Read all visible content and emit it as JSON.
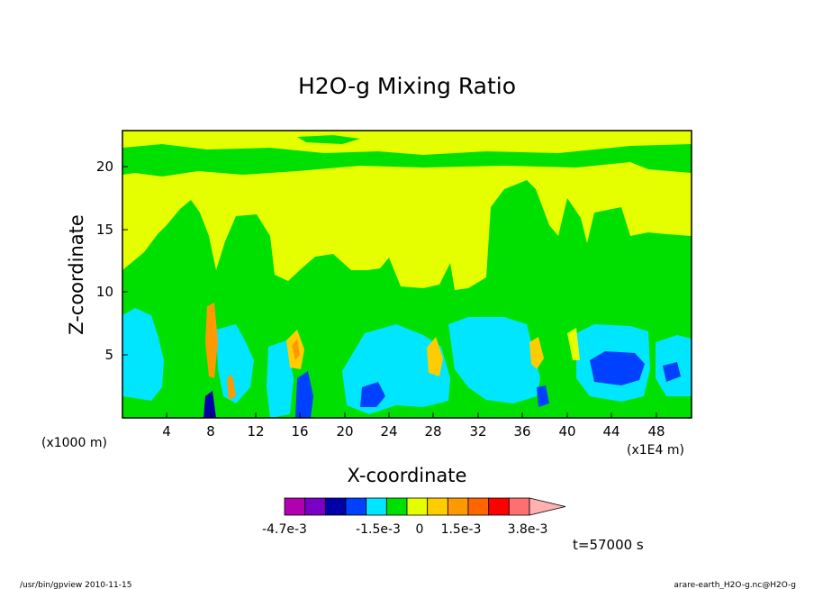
{
  "chart_data": {
    "type": "heatmap",
    "title": "H2O-g Mixing Ratio",
    "xlabel": "X-coordinate",
    "ylabel": "Z-coordinate",
    "x_unit_left": "(x1000 m)",
    "x_unit_right": "(x1E4 m)",
    "xlim": [
      0,
      51.5
    ],
    "ylim": [
      0,
      23
    ],
    "x_ticks": [
      "4",
      "8",
      "12",
      "16",
      "20",
      "24",
      "28",
      "32",
      "36",
      "40",
      "44",
      "48"
    ],
    "y_ticks": [
      "5",
      "10",
      "15",
      "20"
    ],
    "colorbar": {
      "colors": [
        "#b000b0",
        "#7a00c8",
        "#0000a8",
        "#0040ff",
        "#00e6ff",
        "#00e000",
        "#e6ff00",
        "#ffcc00",
        "#ff9900",
        "#ff6600",
        "#ff0000",
        "#ff7070",
        "#ffb0b0"
      ],
      "labels": [
        "-4.7e-3",
        "-1.5e-3",
        "0",
        "1.5e-3",
        "3.8e-3"
      ]
    },
    "time_label": "t=57000 s",
    "regions": [
      {
        "level": "positive-small",
        "color": "#e6ff00",
        "desc": "upper troposphere background, x 0-51, z 10-21"
      },
      {
        "level": "near-zero",
        "color": "#00e000",
        "desc": "band near z 20-22 and lower column x 0-51, z 0-14"
      },
      {
        "level": "negative-small",
        "color": "#00e6ff",
        "desc": "cells at x 0-6, 7-11, 20-30, 29-37, 39-48 below z 8"
      },
      {
        "level": "negative-mid",
        "color": "#0040ff",
        "desc": "cores at x 16-17, 21-23, 42-47, 48-50 below z 5"
      },
      {
        "level": "positive-mid",
        "color": "#ffcc00",
        "desc": "updraft columns at x 8, 15-16, 28, 37 between z 2 and 9"
      }
    ]
  },
  "footer": {
    "left": "/usr/bin/gpview   2010-11-15",
    "right": "arare-earth_H2O-g.nc@H2O-g"
  }
}
